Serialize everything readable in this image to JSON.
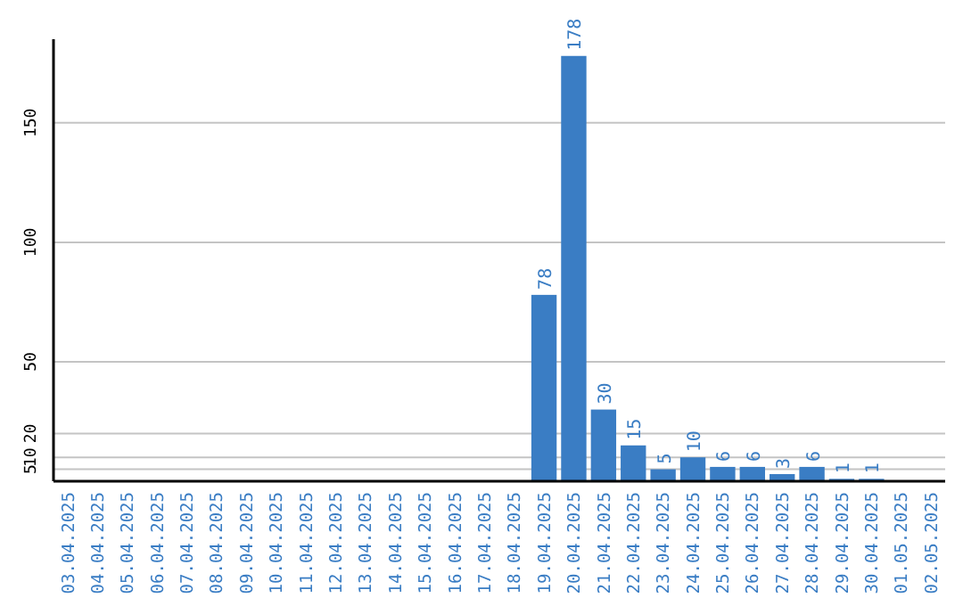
{
  "chart_data": {
    "type": "bar",
    "categories": [
      "03.04.2025",
      "04.04.2025",
      "05.04.2025",
      "06.04.2025",
      "07.04.2025",
      "08.04.2025",
      "09.04.2025",
      "10.04.2025",
      "11.04.2025",
      "12.04.2025",
      "13.04.2025",
      "14.04.2025",
      "15.04.2025",
      "16.04.2025",
      "17.04.2025",
      "18.04.2025",
      "19.04.2025",
      "20.04.2025",
      "21.04.2025",
      "22.04.2025",
      "23.04.2025",
      "24.04.2025",
      "25.04.2025",
      "26.04.2025",
      "27.04.2025",
      "28.04.2025",
      "29.04.2025",
      "30.04.2025",
      "01.05.2025",
      "02.05.2025"
    ],
    "values": [
      0,
      0,
      0,
      0,
      0,
      0,
      0,
      0,
      0,
      0,
      0,
      0,
      0,
      0,
      0,
      0,
      78,
      178,
      30,
      15,
      5,
      10,
      6,
      6,
      3,
      6,
      1,
      1,
      0,
      0
    ],
    "value_labels": [
      null,
      null,
      null,
      null,
      null,
      null,
      null,
      null,
      null,
      null,
      null,
      null,
      null,
      null,
      null,
      null,
      "78",
      "178",
      "30",
      "15",
      "5",
      "10",
      "6",
      "6",
      "3",
      "6",
      "1",
      "1",
      null,
      null
    ],
    "color": "#3a7dc4",
    "ylim": [
      0,
      185
    ],
    "yticks": [
      5,
      10,
      20,
      50,
      100,
      150
    ],
    "grid": "y"
  }
}
